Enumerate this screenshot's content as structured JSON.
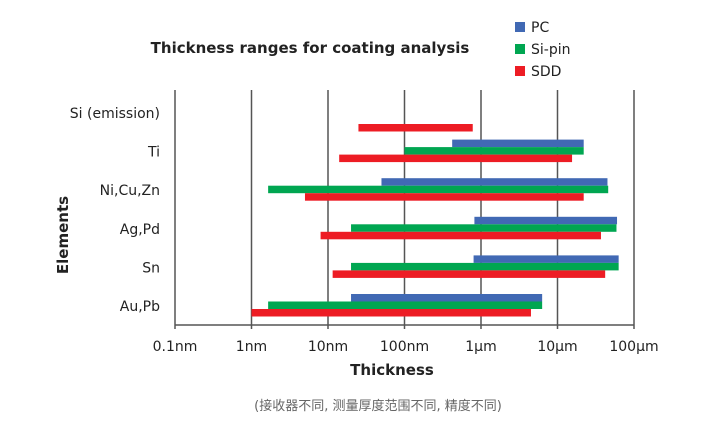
{
  "chart_data": {
    "type": "bar",
    "orientation": "horizontal-range",
    "title": "Thickness ranges for coating analysis",
    "xlabel": "Thickness",
    "ylabel": "Elements",
    "x_scale": "log",
    "x_unit": "nm",
    "xlim": [
      0.1,
      100000
    ],
    "x_ticks": [
      0.1,
      1,
      10,
      100,
      1000,
      10000,
      100000
    ],
    "x_tick_labels": [
      "0.1nm",
      "1nm",
      "10nm",
      "100nm",
      "1µm",
      "10µm",
      "100µm"
    ],
    "grid": "vertical",
    "legend_position": "top-right",
    "categories": [
      "Si (emission)",
      "Ti",
      "Ni,Cu,Zn",
      "Ag,Pd",
      "Sn",
      "Au,Pb"
    ],
    "series": [
      {
        "name": "PC",
        "color": "#4169b4",
        "ranges": [
          null,
          [
            420,
            22000
          ],
          [
            50,
            45000
          ],
          [
            820,
            60000
          ],
          [
            800,
            63000
          ],
          [
            20,
            6300
          ]
        ]
      },
      {
        "name": "Si-pin",
        "color": "#00a651",
        "ranges": [
          null,
          [
            100,
            22000
          ],
          [
            1.65,
            46000
          ],
          [
            20,
            59000
          ],
          [
            20,
            63000
          ],
          [
            1.65,
            6300
          ]
        ]
      },
      {
        "name": "SDD",
        "color": "#ed1c24",
        "ranges": [
          [
            25,
            780
          ],
          [
            14,
            15500
          ],
          [
            5,
            22000
          ],
          [
            8,
            37000
          ],
          [
            11.5,
            42000
          ],
          [
            1,
            4500
          ]
        ]
      }
    ]
  },
  "footnote": "(接收器不同, 测量厚度范围不同, 精度不同)"
}
